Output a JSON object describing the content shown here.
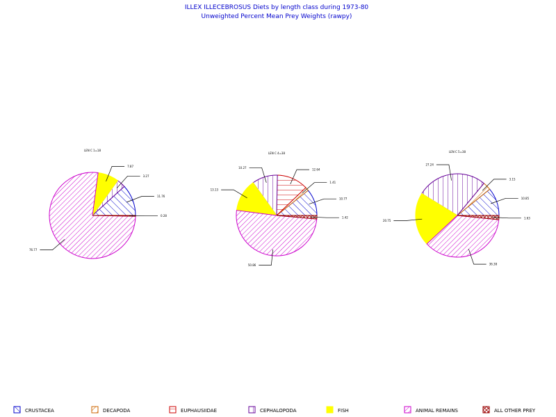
{
  "chart_data": {
    "type": "pie",
    "title": "ILLEX ILLECEBROSUS Diets by length class during 1973-80",
    "subtitle": "Unweighted Percent Mean Prey Weights (rawpy)",
    "categories": [
      "CRUSTACEA",
      "DECAPODA",
      "EUPHAUSIIDAE",
      "CEPHALOPODA",
      "FISH",
      "ANIMAL REMAINS",
      "ALL OTHER PREY"
    ],
    "colors": {
      "CRUSTACEA": "#0000cc",
      "DECAPODA": "#cc6600",
      "EUPHAUSIIDAE": "#cc0000",
      "CEPHALOPODA": "#660099",
      "FISH": "#ffff00",
      "ANIMAL REMAINS": "#cc00cc",
      "ALL OTHER PREY": "#990000"
    },
    "legend_position": "bottom",
    "pies": [
      {
        "label": "LEN C 1=18",
        "slices": [
          {
            "category": "CRUSTACEA",
            "value": 11.76,
            "label": "11.76"
          },
          {
            "category": "CEPHALOPODA",
            "value": 3.27,
            "label": "3.27"
          },
          {
            "category": "FISH",
            "value": 7.87,
            "label": "7.87"
          },
          {
            "category": "ANIMAL REMAINS",
            "value": 76.77,
            "label": "76.77"
          },
          {
            "category": "ALL OTHER PREY",
            "value": 0.28,
            "label": "0.28"
          }
        ]
      },
      {
        "label": "LEN C 4=38",
        "slices": [
          {
            "category": "CRUSTACEA",
            "value": 10.77,
            "label": "10.77"
          },
          {
            "category": "DECAPODA",
            "value": 1.41,
            "label": "1.41"
          },
          {
            "category": "EUPHAUSIIDAE",
            "value": 12.64,
            "label": "12.64"
          },
          {
            "category": "CEPHALOPODA",
            "value": 10.27,
            "label": "10.27"
          },
          {
            "category": "FISH",
            "value": 13.13,
            "label": "13.13"
          },
          {
            "category": "ANIMAL REMAINS",
            "value": 50.86,
            "label": "50.86"
          },
          {
            "category": "ALL OTHER PREY",
            "value": 1.42,
            "label": "1.42"
          }
        ]
      },
      {
        "label": "LEN C 5=38",
        "slices": [
          {
            "category": "CRUSTACEA",
            "value": 10.85,
            "label": "10.85"
          },
          {
            "category": "DECAPODA",
            "value": 3.15,
            "label": "3.15"
          },
          {
            "category": "CEPHALOPODA",
            "value": 27.24,
            "label": "27.24"
          },
          {
            "category": "FISH",
            "value": 20.75,
            "label": "20.75"
          },
          {
            "category": "ANIMAL REMAINS",
            "value": 36.38,
            "label": "36.38"
          },
          {
            "category": "ALL OTHER PREY",
            "value": 1.63,
            "label": "1.63"
          }
        ]
      }
    ]
  }
}
